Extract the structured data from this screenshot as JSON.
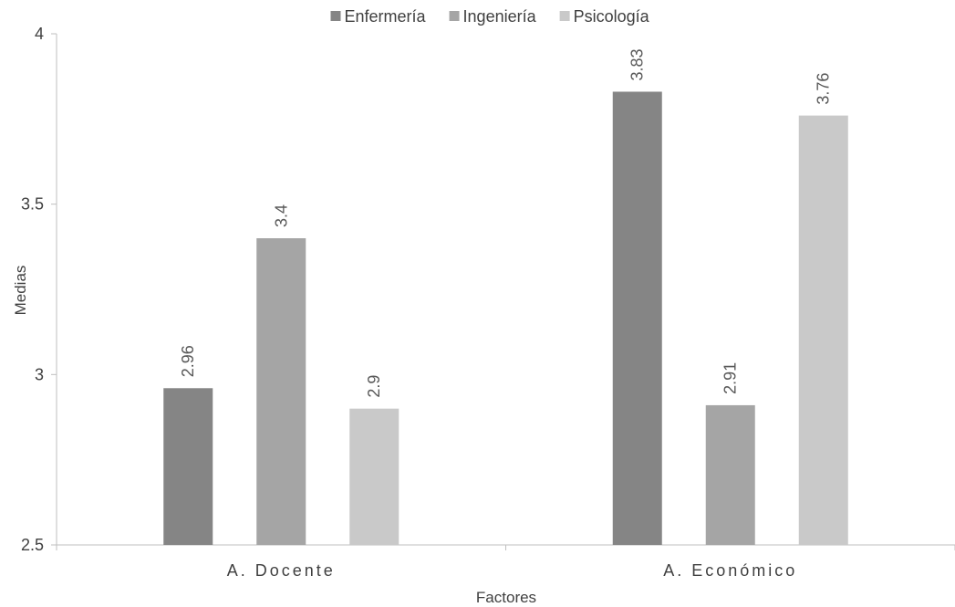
{
  "chart_data": {
    "type": "bar",
    "title": "",
    "xlabel": "Factores",
    "ylabel": "Medias",
    "categories": [
      "A. Docente",
      "A. Económico"
    ],
    "series": [
      {
        "name": "Enfermería",
        "color": "#858585",
        "values": [
          2.96,
          3.83
        ]
      },
      {
        "name": "Ingeniería",
        "color": "#a5a5a5",
        "values": [
          3.4,
          2.91
        ]
      },
      {
        "name": "Psicología",
        "color": "#c9c9c9",
        "values": [
          2.9,
          3.76
        ]
      }
    ],
    "ylim": [
      2.5,
      4
    ],
    "yticks": [
      "2.5",
      "3",
      "3.5",
      "4"
    ],
    "grid": false,
    "legend_position": "top"
  }
}
